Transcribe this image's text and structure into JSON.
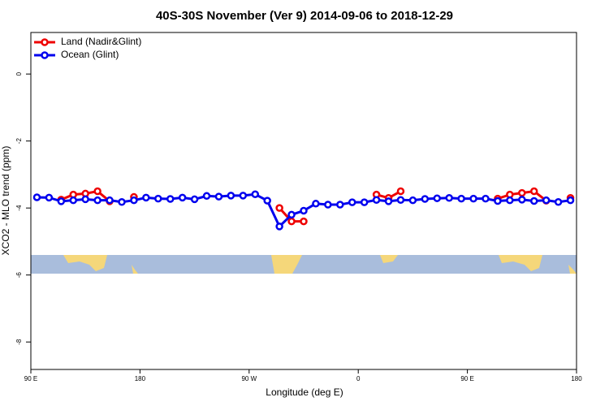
{
  "chart_data": {
    "type": "line",
    "title": "40S-30S November (Ver 9)   2014-09-06 to 2018-12-29",
    "xlabel": "Longitude (deg E)",
    "ylabel": "XCO2 - MLO trend (ppm)",
    "x": [
      95,
      105,
      115,
      125,
      135,
      145,
      155,
      165,
      175,
      185,
      195,
      205,
      215,
      225,
      235,
      245,
      255,
      265,
      275,
      285,
      295,
      305,
      315,
      325,
      335,
      345,
      355,
      365,
      375,
      385,
      395,
      405,
      415,
      425,
      435,
      445,
      455,
      465,
      475,
      485,
      495,
      505,
      515,
      525,
      535
    ],
    "series": [
      {
        "name": "Land (Nadir&Glint)",
        "color": "#ee0000",
        "values": [
          null,
          null,
          -3.75,
          -3.6,
          -3.57,
          -3.5,
          -3.8,
          null,
          -3.67,
          null,
          null,
          null,
          null,
          null,
          null,
          null,
          null,
          null,
          null,
          null,
          -4.0,
          -4.4,
          -4.4,
          null,
          null,
          null,
          null,
          null,
          -3.6,
          -3.7,
          -3.5,
          null,
          null,
          null,
          null,
          null,
          null,
          null,
          -3.72,
          -3.6,
          -3.55,
          -3.5,
          -3.78,
          null,
          -3.7
        ]
      },
      {
        "name": "Ocean (Glint)",
        "color": "#0000ee",
        "values": [
          -3.68,
          -3.69,
          -3.8,
          -3.77,
          -3.74,
          -3.77,
          -3.77,
          -3.82,
          -3.77,
          -3.69,
          -3.72,
          -3.73,
          -3.69,
          -3.74,
          -3.64,
          -3.66,
          -3.63,
          -3.63,
          -3.59,
          -3.78,
          -4.55,
          -4.2,
          -4.08,
          -3.87,
          -3.9,
          -3.9,
          -3.83,
          -3.83,
          -3.76,
          -3.8,
          -3.76,
          -3.77,
          -3.73,
          -3.71,
          -3.7,
          -3.72,
          -3.72,
          -3.72,
          -3.79,
          -3.77,
          -3.75,
          -3.79,
          -3.77,
          -3.82,
          -3.77
        ]
      }
    ],
    "xlim": [
      90,
      540
    ],
    "xticks": [
      {
        "value": 90,
        "label": "90 E"
      },
      180,
      {
        "value": 270,
        "label": "90 W"
      },
      {
        "value": 360,
        "label": "0"
      },
      {
        "value": 450,
        "label": "90 E"
      },
      {
        "value": 540,
        "label": "180"
      }
    ],
    "ylim": [
      -8.82,
      1.24
    ],
    "yticks": [
      0,
      -2,
      -4,
      -6,
      -8
    ],
    "legend": "top-left"
  }
}
